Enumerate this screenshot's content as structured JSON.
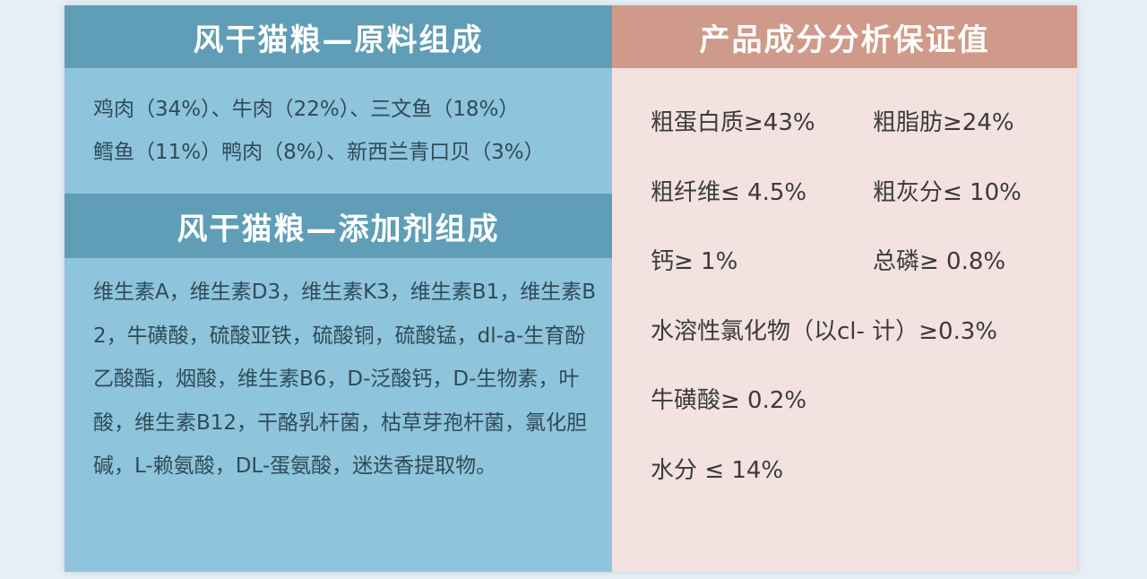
{
  "left": {
    "ingredients_title": "风干猫粮—原料组成",
    "ingredients_lines": [
      "鸡肉（34%）、牛肉（22%）、三文鱼（18%）",
      "鳕鱼（11%）鸭肉（8%）、新西兰青口贝（3%）"
    ],
    "additives_title": "风干猫粮—添加剂组成",
    "additives_text": "维生素A，维生素D3，维生素K3，维生素B1，维生素B2，牛磺酸，硫酸亚铁，硫酸铜，硫酸锰，dl-a-生育酚乙酸酯，烟酸，维生素B6，D-泛酸钙，D-生物素，叶酸，维生素B12，干酪乳杆菌，枯草芽孢杆菌，氯化胆碱，L-赖氨酸，DL-蛋氨酸，迷迭香提取物。"
  },
  "right": {
    "title": "产品成分分析保证值",
    "rows": [
      [
        "粗蛋白质≥43%",
        "粗脂肪≥24%"
      ],
      [
        "粗纤维≤ 4.5%",
        "粗灰分≤ 10%"
      ],
      [
        "钙≥ 1%",
        "总磷≥ 0.8%"
      ],
      [
        "水溶性氯化物（以cl- 计）≥0.3%"
      ],
      [
        "牛磺酸≥ 0.2%"
      ],
      [
        "水分 ≤ 14%"
      ]
    ]
  },
  "colors": {
    "left_bg": "#8ec4dc",
    "left_header": "#5f9eb6",
    "right_bg": "#f3e2e0",
    "right_header": "#cf9a8a",
    "page_bg": "#e6eef6"
  }
}
